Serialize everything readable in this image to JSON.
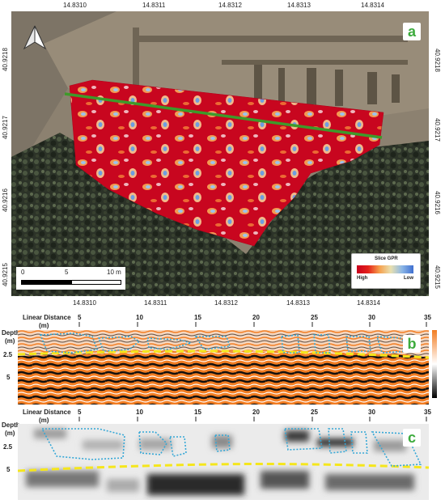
{
  "panel_a": {
    "letter": "a",
    "lon_ticks": [
      "14.8310",
      "14.8311",
      "14.8312",
      "14.8313",
      "14.8314"
    ],
    "lat_ticks": [
      "40.9218",
      "40.9217",
      "40.9216",
      "40.9215"
    ],
    "scale": {
      "zero": "0",
      "mid": "5",
      "end": "10 m"
    },
    "legend": {
      "title": "Slice GPR",
      "high": "High",
      "low": "Low",
      "gradient": [
        "#c8001e",
        "#e4221a",
        "#f6a04c",
        "#e8e0b0",
        "#8bb6e6",
        "#3f6fd0"
      ]
    },
    "north_arrow": "north-arrow-icon",
    "transect_color": "#3e9a2a"
  },
  "panel_b": {
    "letter": "b",
    "x_label": "Linear Distance",
    "x_unit": "(m)",
    "x_ticks": [
      "5",
      "10",
      "15",
      "20",
      "25",
      "30",
      "35"
    ],
    "y_label": "Depth",
    "y_unit": "(m)",
    "y_ticks": [
      "2.5",
      "5"
    ],
    "colorbar": [
      "#f27d22",
      "#ffffff",
      "#000000"
    ]
  },
  "panel_c": {
    "letter": "c",
    "x_label": "Linear Distance",
    "x_unit": "(m)",
    "x_ticks": [
      "5",
      "10",
      "15",
      "20",
      "25",
      "30",
      "35"
    ],
    "y_label": "Depth",
    "y_unit": "(m)",
    "y_ticks": [
      "2.5",
      "5"
    ]
  },
  "colors": {
    "anomaly_outline": "#35a7d6",
    "interface_line": "#f5e61c"
  }
}
